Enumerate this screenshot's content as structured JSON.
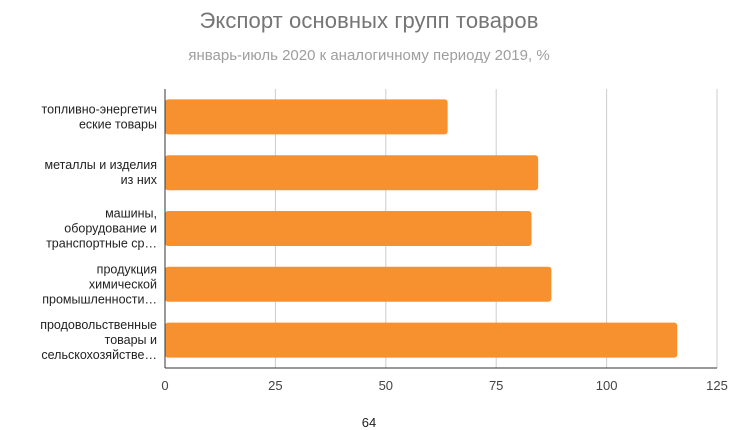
{
  "chart_data": {
    "type": "bar",
    "orientation": "horizontal",
    "title": "Экспорт основных групп товаров",
    "subtitle": "январь-июль 2020 к аналогичному периоду 2019, %",
    "categories": [
      [
        "топливно-энергетич",
        "еские товары"
      ],
      [
        "металлы и изделия",
        "из них"
      ],
      [
        "машины,",
        "оборудование и",
        "транспортные ср…"
      ],
      [
        "продукция",
        "химической",
        "промышленности…"
      ],
      [
        "продовольственные",
        "товары и",
        "сельскохозяйстве…"
      ]
    ],
    "values": [
      64,
      84.5,
      83,
      87.5,
      116
    ],
    "xlim": [
      0,
      125
    ],
    "x_ticks": [
      "0",
      "25",
      "50",
      "75",
      "100",
      "125"
    ],
    "footer_label": "64",
    "grid": true,
    "legend": "none",
    "bar_color": "#f7912f",
    "grid_color": "#cccccc",
    "axis_color": "#333333"
  }
}
